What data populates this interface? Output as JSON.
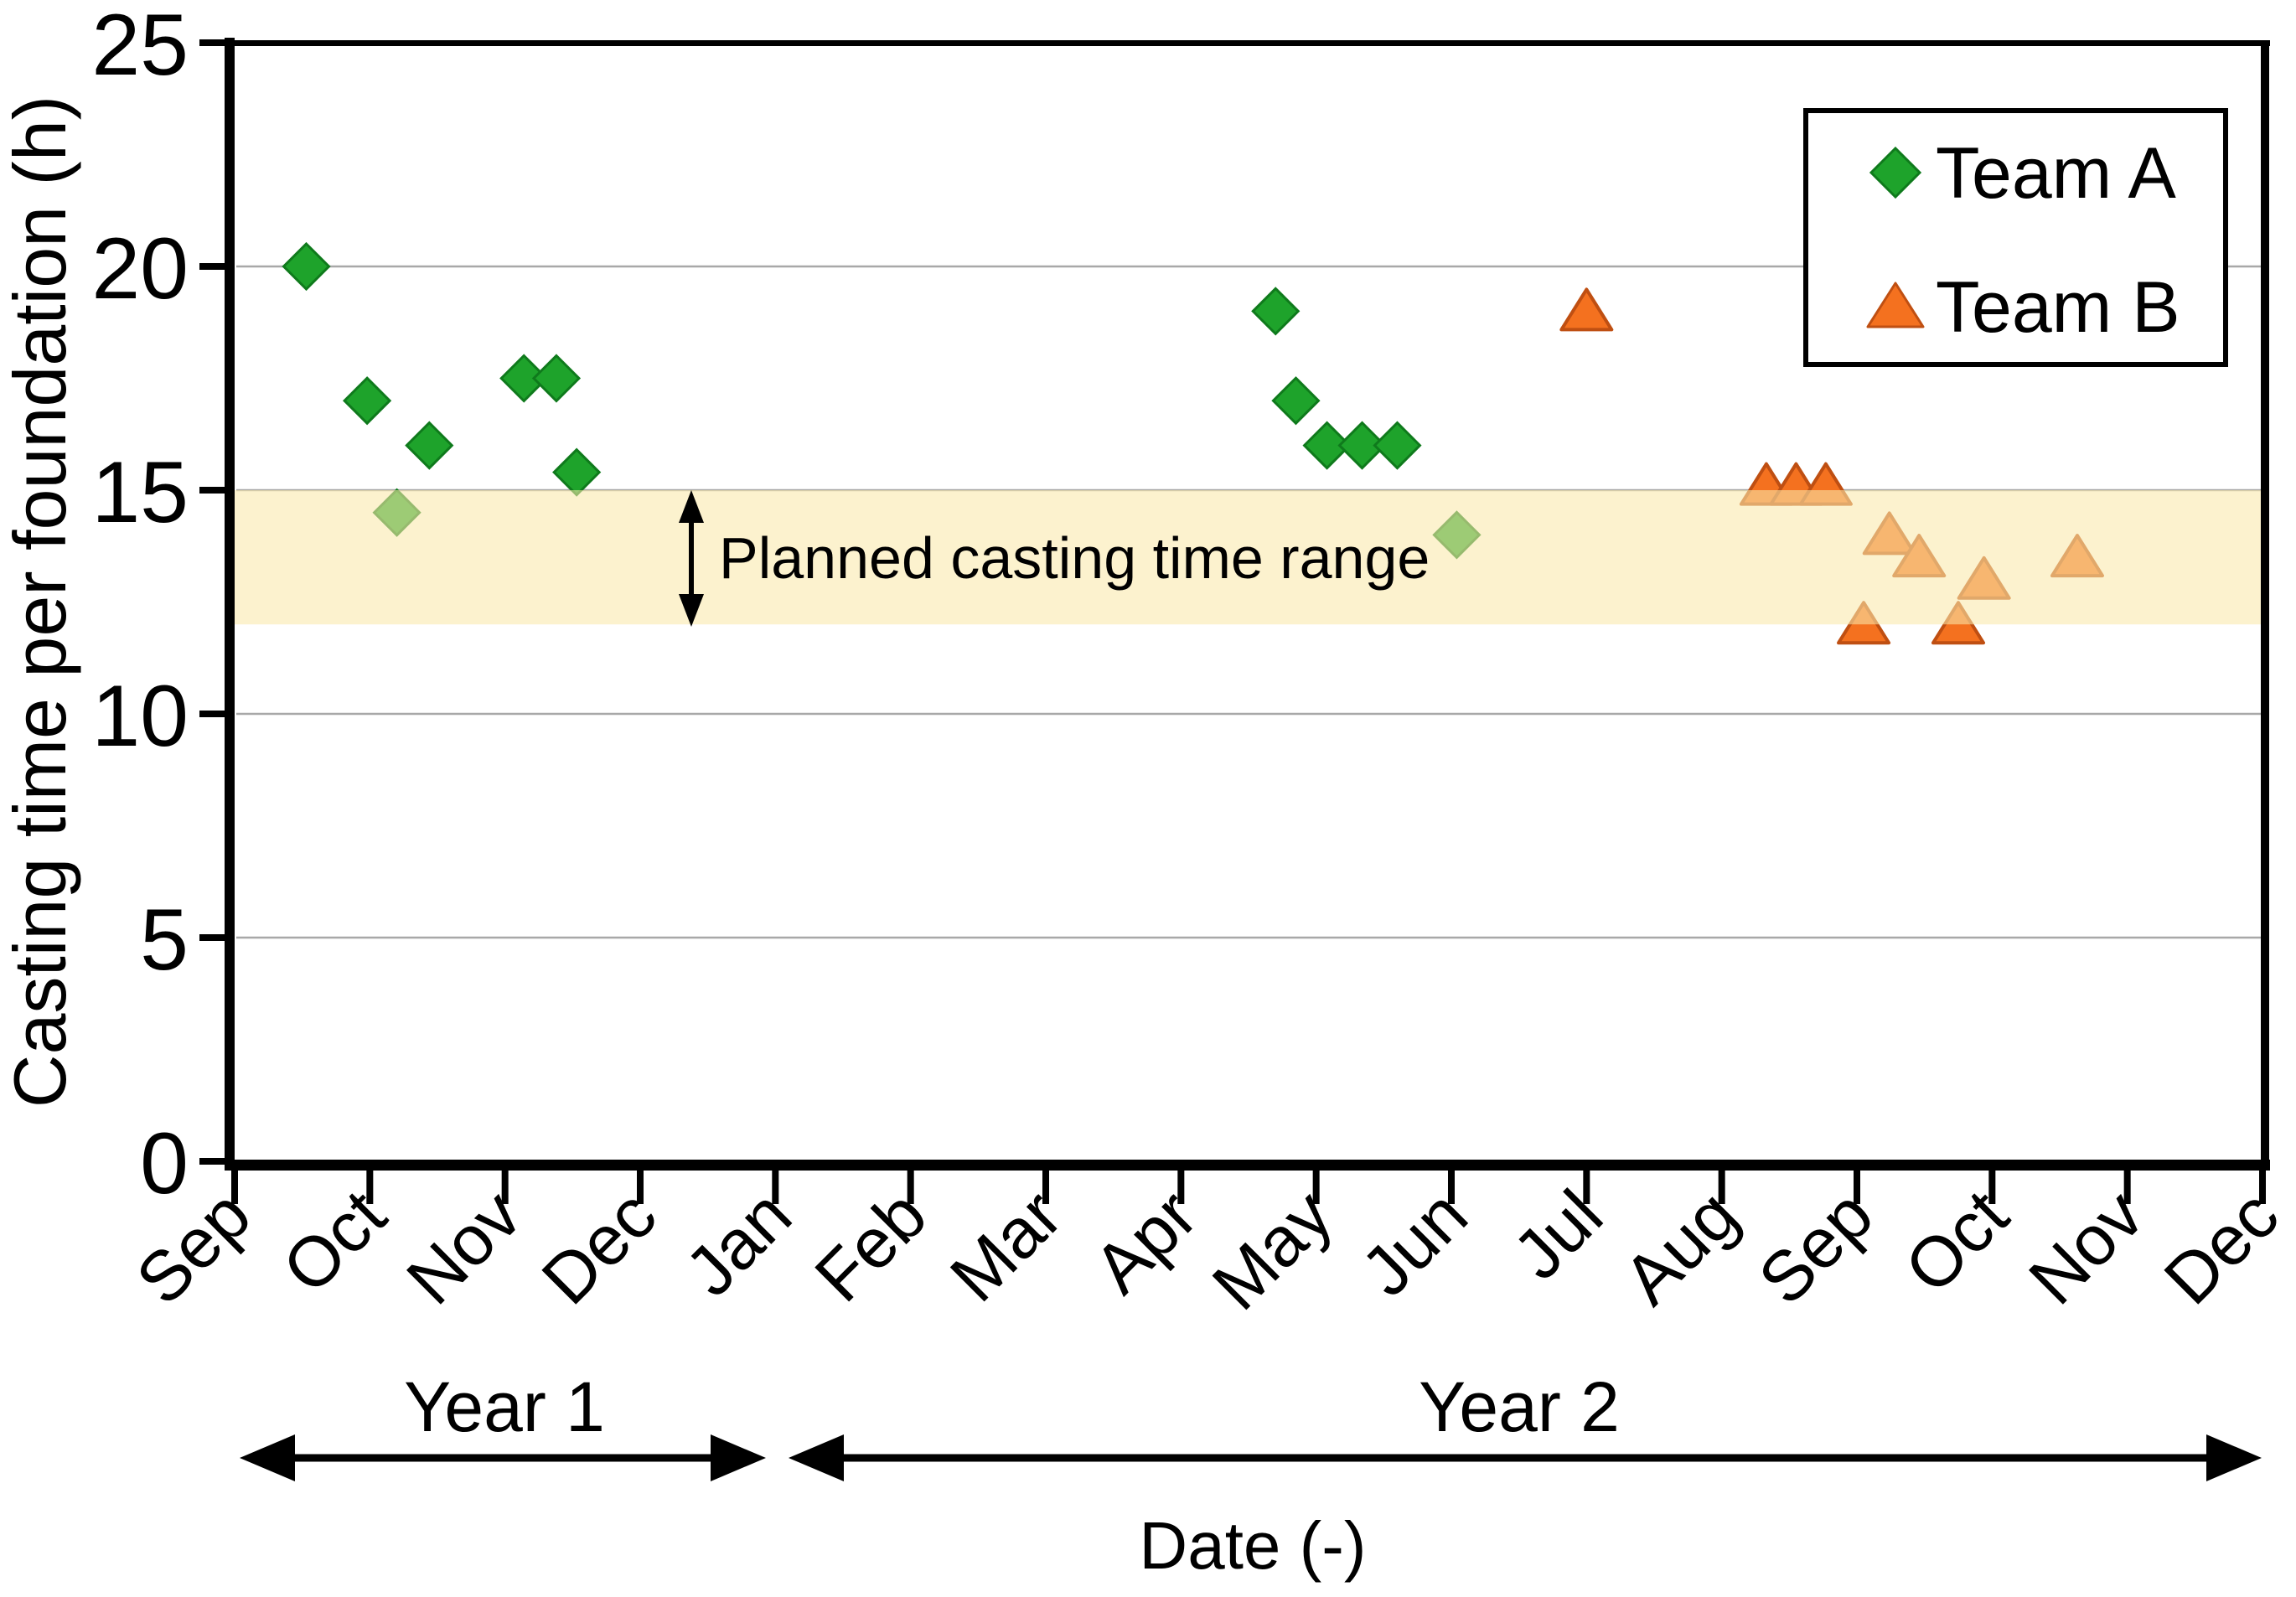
{
  "y_axis": {
    "label": "Casting time per foundation (h)",
    "ticks": [
      0,
      5,
      10,
      15,
      20,
      25
    ],
    "min": 0,
    "max": 25
  },
  "x_axis": {
    "label": "Date (-)",
    "months": [
      "Sep",
      "Oct",
      "Nov",
      "Dec",
      "Jan",
      "Feb",
      "Mar",
      "Apr",
      "May",
      "Jun",
      "Jul",
      "Aug",
      "Sep",
      "Oct",
      "Nov",
      "Dec"
    ]
  },
  "year_spans": [
    {
      "label": "Year 1",
      "from_month": 0,
      "to_month": 4
    },
    {
      "label": "Year 2",
      "from_month": 4,
      "to_month": 15
    }
  ],
  "legend": {
    "items": [
      {
        "label": "Team A",
        "marker": "diamond",
        "color": "#1EA32B"
      },
      {
        "label": "Team B",
        "marker": "triangle",
        "color": "#F4711F"
      }
    ]
  },
  "band": {
    "label": "Planned casting time range",
    "from": 12,
    "to": 15,
    "fill": "#F9E9AA",
    "opacity": 0.58
  },
  "colors": {
    "team_a_fill": "#1EA32B",
    "team_a_stroke": "#0F7A1C",
    "team_b_fill": "#F4711F",
    "team_b_stroke": "#BF4F12",
    "gridline": "#A8A8A8",
    "axis": "#000000"
  },
  "chart_data": {
    "type": "scatter",
    "x_unit": "months_since_sep_year1",
    "xlabel": "Date (-)",
    "ylabel": "Casting time per foundation (h)",
    "ylim": [
      0,
      25
    ],
    "grid": "horizontal",
    "legend_position": "top-right",
    "annotation": "Planned casting time range",
    "planned_range_hours": [
      12,
      15
    ],
    "series": [
      {
        "name": "Team A",
        "marker": "diamond",
        "points": [
          {
            "x": 0.53,
            "y": 20.0
          },
          {
            "x": 0.98,
            "y": 17.0
          },
          {
            "x": 1.2,
            "y": 14.5
          },
          {
            "x": 1.44,
            "y": 16.0
          },
          {
            "x": 2.14,
            "y": 17.5
          },
          {
            "x": 2.38,
            "y": 17.5
          },
          {
            "x": 2.53,
            "y": 15.4
          },
          {
            "x": 7.7,
            "y": 19.0
          },
          {
            "x": 7.85,
            "y": 17.0
          },
          {
            "x": 8.08,
            "y": 16.0
          },
          {
            "x": 8.34,
            "y": 16.0
          },
          {
            "x": 8.6,
            "y": 16.0
          },
          {
            "x": 9.04,
            "y": 14.0
          }
        ]
      },
      {
        "name": "Team B",
        "marker": "triangle",
        "points": [
          {
            "x": 10.0,
            "y": 19.0
          },
          {
            "x": 11.33,
            "y": 15.1
          },
          {
            "x": 11.55,
            "y": 15.1
          },
          {
            "x": 11.77,
            "y": 15.1
          },
          {
            "x": 12.05,
            "y": 12.0
          },
          {
            "x": 12.24,
            "y": 14.0
          },
          {
            "x": 12.46,
            "y": 13.5
          },
          {
            "x": 12.75,
            "y": 12.0
          },
          {
            "x": 12.94,
            "y": 13.0
          },
          {
            "x": 13.63,
            "y": 13.5
          }
        ]
      }
    ]
  }
}
